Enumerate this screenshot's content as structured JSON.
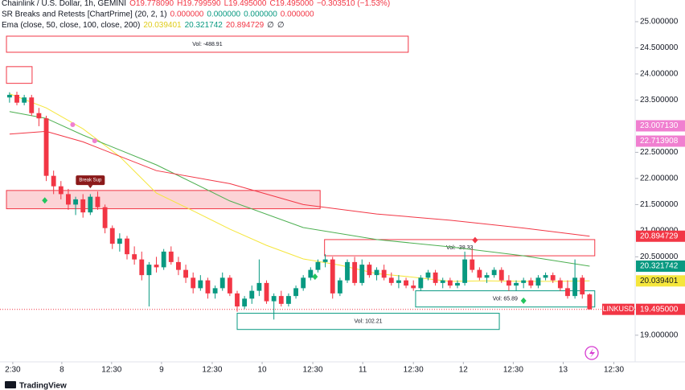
{
  "chart_data": {
    "type": "candlestick",
    "legend_lines": [
      [
        {
          "text": "Chainlink / U.S. Dollar, 1h, GEMINI",
          "color": "#131722"
        },
        {
          "text": "O19.778090",
          "color": "#f23645"
        },
        {
          "text": "H19.799590",
          "color": "#f23645"
        },
        {
          "text": "L19.495000",
          "color": "#f23645"
        },
        {
          "text": "C19.495000",
          "color": "#f23645"
        },
        {
          "text": "−0.303510 (−1.53%)",
          "color": "#f23645"
        }
      ],
      [
        {
          "text": "SR Breaks and Retests [ChartPrime] (20, 2, 1)",
          "color": "#131722"
        },
        {
          "text": "0.000000",
          "color": "#f23645"
        },
        {
          "text": "0.000000",
          "color": "#089981"
        },
        {
          "text": "0.000000",
          "color": "#089981"
        },
        {
          "text": "0.000000",
          "color": "#f23645"
        }
      ],
      [
        {
          "text": "Ema (close, 50, close, 100, close, 200)",
          "color": "#131722"
        },
        {
          "text": "20.039401",
          "color": "#f5e63c"
        },
        {
          "text": "20.321742",
          "color": "#089981"
        },
        {
          "text": "20.894729",
          "color": "#f23645"
        },
        {
          "text": "∅",
          "color": "#131722"
        },
        {
          "text": "∅",
          "color": "#131722"
        }
      ]
    ],
    "up_color": "#089981",
    "down_color": "#f23645",
    "ohlc": [
      [
        23.55,
        23.65,
        23.45,
        23.6
      ],
      [
        23.6,
        23.66,
        23.4,
        23.45
      ],
      [
        23.45,
        23.6,
        23.4,
        23.55
      ],
      [
        23.55,
        23.6,
        23.2,
        23.25
      ],
      [
        23.25,
        23.35,
        23.0,
        23.15
      ],
      [
        23.15,
        23.2,
        21.95,
        22.05
      ],
      [
        22.05,
        22.15,
        21.7,
        21.85
      ],
      [
        21.85,
        21.95,
        21.6,
        21.7
      ],
      [
        21.7,
        21.8,
        21.4,
        21.5
      ],
      [
        21.5,
        21.65,
        21.3,
        21.6
      ],
      [
        21.6,
        21.7,
        21.25,
        21.35
      ],
      [
        21.35,
        21.7,
        21.3,
        21.65
      ],
      [
        21.65,
        21.75,
        21.4,
        21.45
      ],
      [
        21.45,
        21.5,
        20.95,
        21.05
      ],
      [
        21.05,
        21.1,
        20.65,
        20.75
      ],
      [
        20.75,
        20.95,
        20.6,
        20.85
      ],
      [
        20.85,
        20.9,
        20.45,
        20.55
      ],
      [
        20.55,
        20.7,
        20.35,
        20.45
      ],
      [
        20.45,
        20.6,
        20.05,
        20.15
      ],
      [
        20.15,
        20.4,
        19.55,
        20.35
      ],
      [
        20.35,
        20.5,
        20.2,
        20.3
      ],
      [
        20.3,
        20.65,
        20.25,
        20.6
      ],
      [
        20.6,
        20.7,
        20.35,
        20.4
      ],
      [
        20.4,
        20.5,
        20.15,
        20.25
      ],
      [
        20.25,
        20.35,
        20.0,
        20.1
      ],
      [
        20.1,
        20.2,
        19.8,
        19.9
      ],
      [
        19.9,
        20.15,
        19.85,
        20.05
      ],
      [
        20.05,
        20.1,
        19.7,
        19.8
      ],
      [
        19.8,
        19.95,
        19.7,
        19.9
      ],
      [
        19.9,
        20.2,
        19.85,
        20.1
      ],
      [
        20.1,
        20.15,
        19.75,
        19.8
      ],
      [
        19.8,
        19.85,
        19.45,
        19.55
      ],
      [
        19.55,
        19.75,
        19.5,
        19.7
      ],
      [
        19.7,
        19.95,
        19.6,
        19.85
      ],
      [
        19.85,
        20.45,
        19.75,
        20.0
      ],
      [
        20.0,
        20.05,
        19.6,
        19.65
      ],
      [
        19.65,
        19.8,
        19.3,
        19.75
      ],
      [
        19.75,
        19.85,
        19.55,
        19.6
      ],
      [
        19.6,
        19.8,
        19.55,
        19.75
      ],
      [
        19.75,
        19.95,
        19.7,
        19.9
      ],
      [
        19.9,
        20.15,
        19.85,
        20.1
      ],
      [
        20.1,
        20.3,
        20.05,
        20.25
      ],
      [
        20.25,
        20.45,
        20.2,
        20.4
      ],
      [
        20.4,
        20.55,
        20.3,
        20.45
      ],
      [
        20.45,
        20.5,
        19.7,
        19.8
      ],
      [
        19.8,
        20.1,
        19.75,
        20.05
      ],
      [
        20.05,
        20.45,
        20.0,
        20.4
      ],
      [
        20.4,
        20.5,
        19.95,
        20.0
      ],
      [
        20.0,
        20.45,
        19.95,
        20.35
      ],
      [
        20.35,
        20.4,
        20.1,
        20.15
      ],
      [
        20.15,
        20.3,
        20.05,
        20.25
      ],
      [
        20.25,
        20.35,
        20.05,
        20.1
      ],
      [
        20.1,
        20.2,
        19.95,
        20.0
      ],
      [
        20.0,
        20.15,
        19.9,
        20.05
      ],
      [
        20.05,
        20.1,
        19.9,
        19.95
      ],
      [
        19.95,
        20.05,
        19.85,
        19.9
      ],
      [
        19.9,
        20.15,
        19.85,
        20.1
      ],
      [
        20.1,
        20.25,
        20.05,
        20.2
      ],
      [
        20.2,
        20.25,
        19.95,
        20.0
      ],
      [
        20.0,
        20.1,
        19.9,
        20.05
      ],
      [
        20.05,
        20.1,
        19.9,
        19.95
      ],
      [
        19.95,
        20.05,
        19.9,
        20.0
      ],
      [
        20.0,
        20.6,
        19.95,
        20.45
      ],
      [
        20.45,
        20.65,
        20.2,
        20.25
      ],
      [
        20.25,
        20.3,
        20.05,
        20.1
      ],
      [
        20.1,
        20.2,
        20.0,
        20.15
      ],
      [
        20.15,
        20.3,
        20.1,
        20.25
      ],
      [
        20.25,
        20.3,
        20.0,
        20.05
      ],
      [
        20.05,
        20.15,
        19.85,
        19.95
      ],
      [
        19.95,
        20.05,
        19.85,
        20.0
      ],
      [
        20.0,
        20.1,
        19.9,
        20.05
      ],
      [
        20.05,
        20.1,
        19.9,
        19.95
      ],
      [
        19.95,
        20.15,
        19.9,
        20.1
      ],
      [
        20.1,
        20.2,
        20.05,
        20.15
      ],
      [
        20.15,
        20.2,
        20.0,
        20.05
      ],
      [
        20.05,
        20.1,
        19.85,
        19.9
      ],
      [
        19.9,
        20.05,
        19.7,
        19.75
      ],
      [
        19.75,
        20.45,
        19.7,
        20.1
      ],
      [
        20.1,
        20.15,
        19.7,
        19.78
      ],
      [
        19.78,
        19.8,
        19.495,
        19.495
      ]
    ],
    "lines": [
      {
        "color": "#f5e63c",
        "x": [
          0,
          5,
          10,
          15,
          20,
          25,
          30,
          35,
          40,
          45,
          50,
          55,
          60,
          65,
          70,
          75,
          79
        ],
        "values": [
          23.62,
          23.35,
          22.95,
          22.42,
          21.72,
          21.38,
          21.03,
          20.72,
          20.46,
          20.34,
          20.18,
          20.11,
          20.03,
          20.04,
          20.03,
          20.03,
          20.039401
        ]
      },
      {
        "color": "#4caf50",
        "x": [
          0,
          5,
          10,
          20,
          30,
          40,
          50,
          60,
          70,
          79
        ],
        "values": [
          23.28,
          23.15,
          22.83,
          22.26,
          21.57,
          21.06,
          20.83,
          20.69,
          20.52,
          20.321742
        ]
      },
      {
        "color": "#f23645",
        "x": [
          0,
          5,
          10,
          20,
          30,
          40,
          50,
          60,
          70,
          79
        ],
        "values": [
          22.85,
          22.9,
          22.7,
          22.15,
          21.9,
          21.5,
          21.32,
          21.2,
          21.05,
          20.894729
        ]
      }
    ],
    "zones": [
      {
        "x0": -0.42,
        "x1": 54.3,
        "ylo": 24.415,
        "yhi": 24.723,
        "color": "#f23645",
        "filled": false,
        "label": "Vol: -488.91"
      },
      {
        "x0": -0.42,
        "x1": 3.07,
        "ylo": 23.82,
        "yhi": 24.14,
        "color": "#f23645",
        "filled": false
      },
      {
        "x0": -0.42,
        "x1": 42.3,
        "ylo": 21.42,
        "yhi": 21.77,
        "color": "#f23645",
        "filled": true
      },
      {
        "x0": 42.9,
        "x1": 79.7,
        "ylo": 20.52,
        "yhi": 20.83,
        "color": "#f23645",
        "filled": false,
        "label": "Vol: -38.33"
      },
      {
        "x0": 55.3,
        "x1": 79.7,
        "ylo": 19.54,
        "yhi": 19.85,
        "color": "#089981",
        "filled": false,
        "label": "Vol: 65.89"
      },
      {
        "x0": 31.0,
        "x1": 66.7,
        "ylo": 19.11,
        "yhi": 19.42,
        "color": "#089981",
        "filled": false,
        "label": "Vol: 102.21"
      }
    ],
    "break_label": {
      "x": 11,
      "y": 21.95,
      "text": "Break Sup"
    },
    "markers": [
      {
        "shape": "circle",
        "color": "#f07fd0",
        "x": 8.6,
        "y": 23.03
      },
      {
        "shape": "circle",
        "color": "#f07fd0",
        "x": 11.6,
        "y": 22.72
      },
      {
        "shape": "diamond",
        "color": "#22c55e",
        "x": 4.8,
        "y": 21.58
      },
      {
        "shape": "diamond",
        "color": "#22c55e",
        "x": 41.6,
        "y": 20.12
      },
      {
        "shape": "diamond",
        "color": "#22c55e",
        "x": 70.0,
        "y": 19.66
      },
      {
        "shape": "diamond",
        "color": "#f23645",
        "x": 63.4,
        "y": 20.82
      }
    ],
    "last_price": 19.495,
    "price_tags": [
      {
        "value": 23.00713,
        "label": "23.007130",
        "color": "#f07fd0"
      },
      {
        "value": 22.713908,
        "label": "22.713908",
        "color": "#f07fd0"
      },
      {
        "value": 20.894729,
        "label": "20.894729",
        "color": "#f23645"
      },
      {
        "value": 20.321742,
        "label": "20.321742",
        "color": "#089981"
      },
      {
        "value": 20.039401,
        "label": "20.039401",
        "color": "#f5e63c"
      },
      {
        "value": 19.495,
        "label": "19.495000",
        "color": "#f23645",
        "name": "LINKUSD"
      }
    ],
    "xlim": [
      -1.3,
      85.2
    ],
    "ylim": [
      18.49,
      25.415
    ],
    "xticks": [
      {
        "value": 0.44,
        "label": "2:30"
      },
      {
        "value": 7.12,
        "label": "8"
      },
      {
        "value": 13.9,
        "label": "12:30"
      },
      {
        "value": 20.7,
        "label": "9"
      },
      {
        "value": 27.6,
        "label": "12:30"
      },
      {
        "value": 34.4,
        "label": "10"
      },
      {
        "value": 41.3,
        "label": "12:30"
      },
      {
        "value": 48.1,
        "label": "11"
      },
      {
        "value": 55.0,
        "label": "12:30"
      },
      {
        "value": 61.8,
        "label": "12"
      },
      {
        "value": 68.6,
        "label": "12:30"
      },
      {
        "value": 75.4,
        "label": "13"
      },
      {
        "value": 82.3,
        "label": "12:30"
      }
    ],
    "yticks": [
      {
        "value": 19,
        "label": "19.000000"
      },
      {
        "value": 20.5,
        "label": "20.500000"
      },
      {
        "value": 21,
        "label": "21.000000"
      },
      {
        "value": 21.5,
        "label": "21.500000"
      },
      {
        "value": 22,
        "label": "22.000000"
      },
      {
        "value": 22.5,
        "label": "22.500000"
      },
      {
        "value": 23.5,
        "label": "23.500000"
      },
      {
        "value": 24,
        "label": "24.000000"
      },
      {
        "value": 24.5,
        "label": "24.500000"
      },
      {
        "value": 25,
        "label": "25.000000"
      }
    ],
    "brand": "TradingView"
  }
}
